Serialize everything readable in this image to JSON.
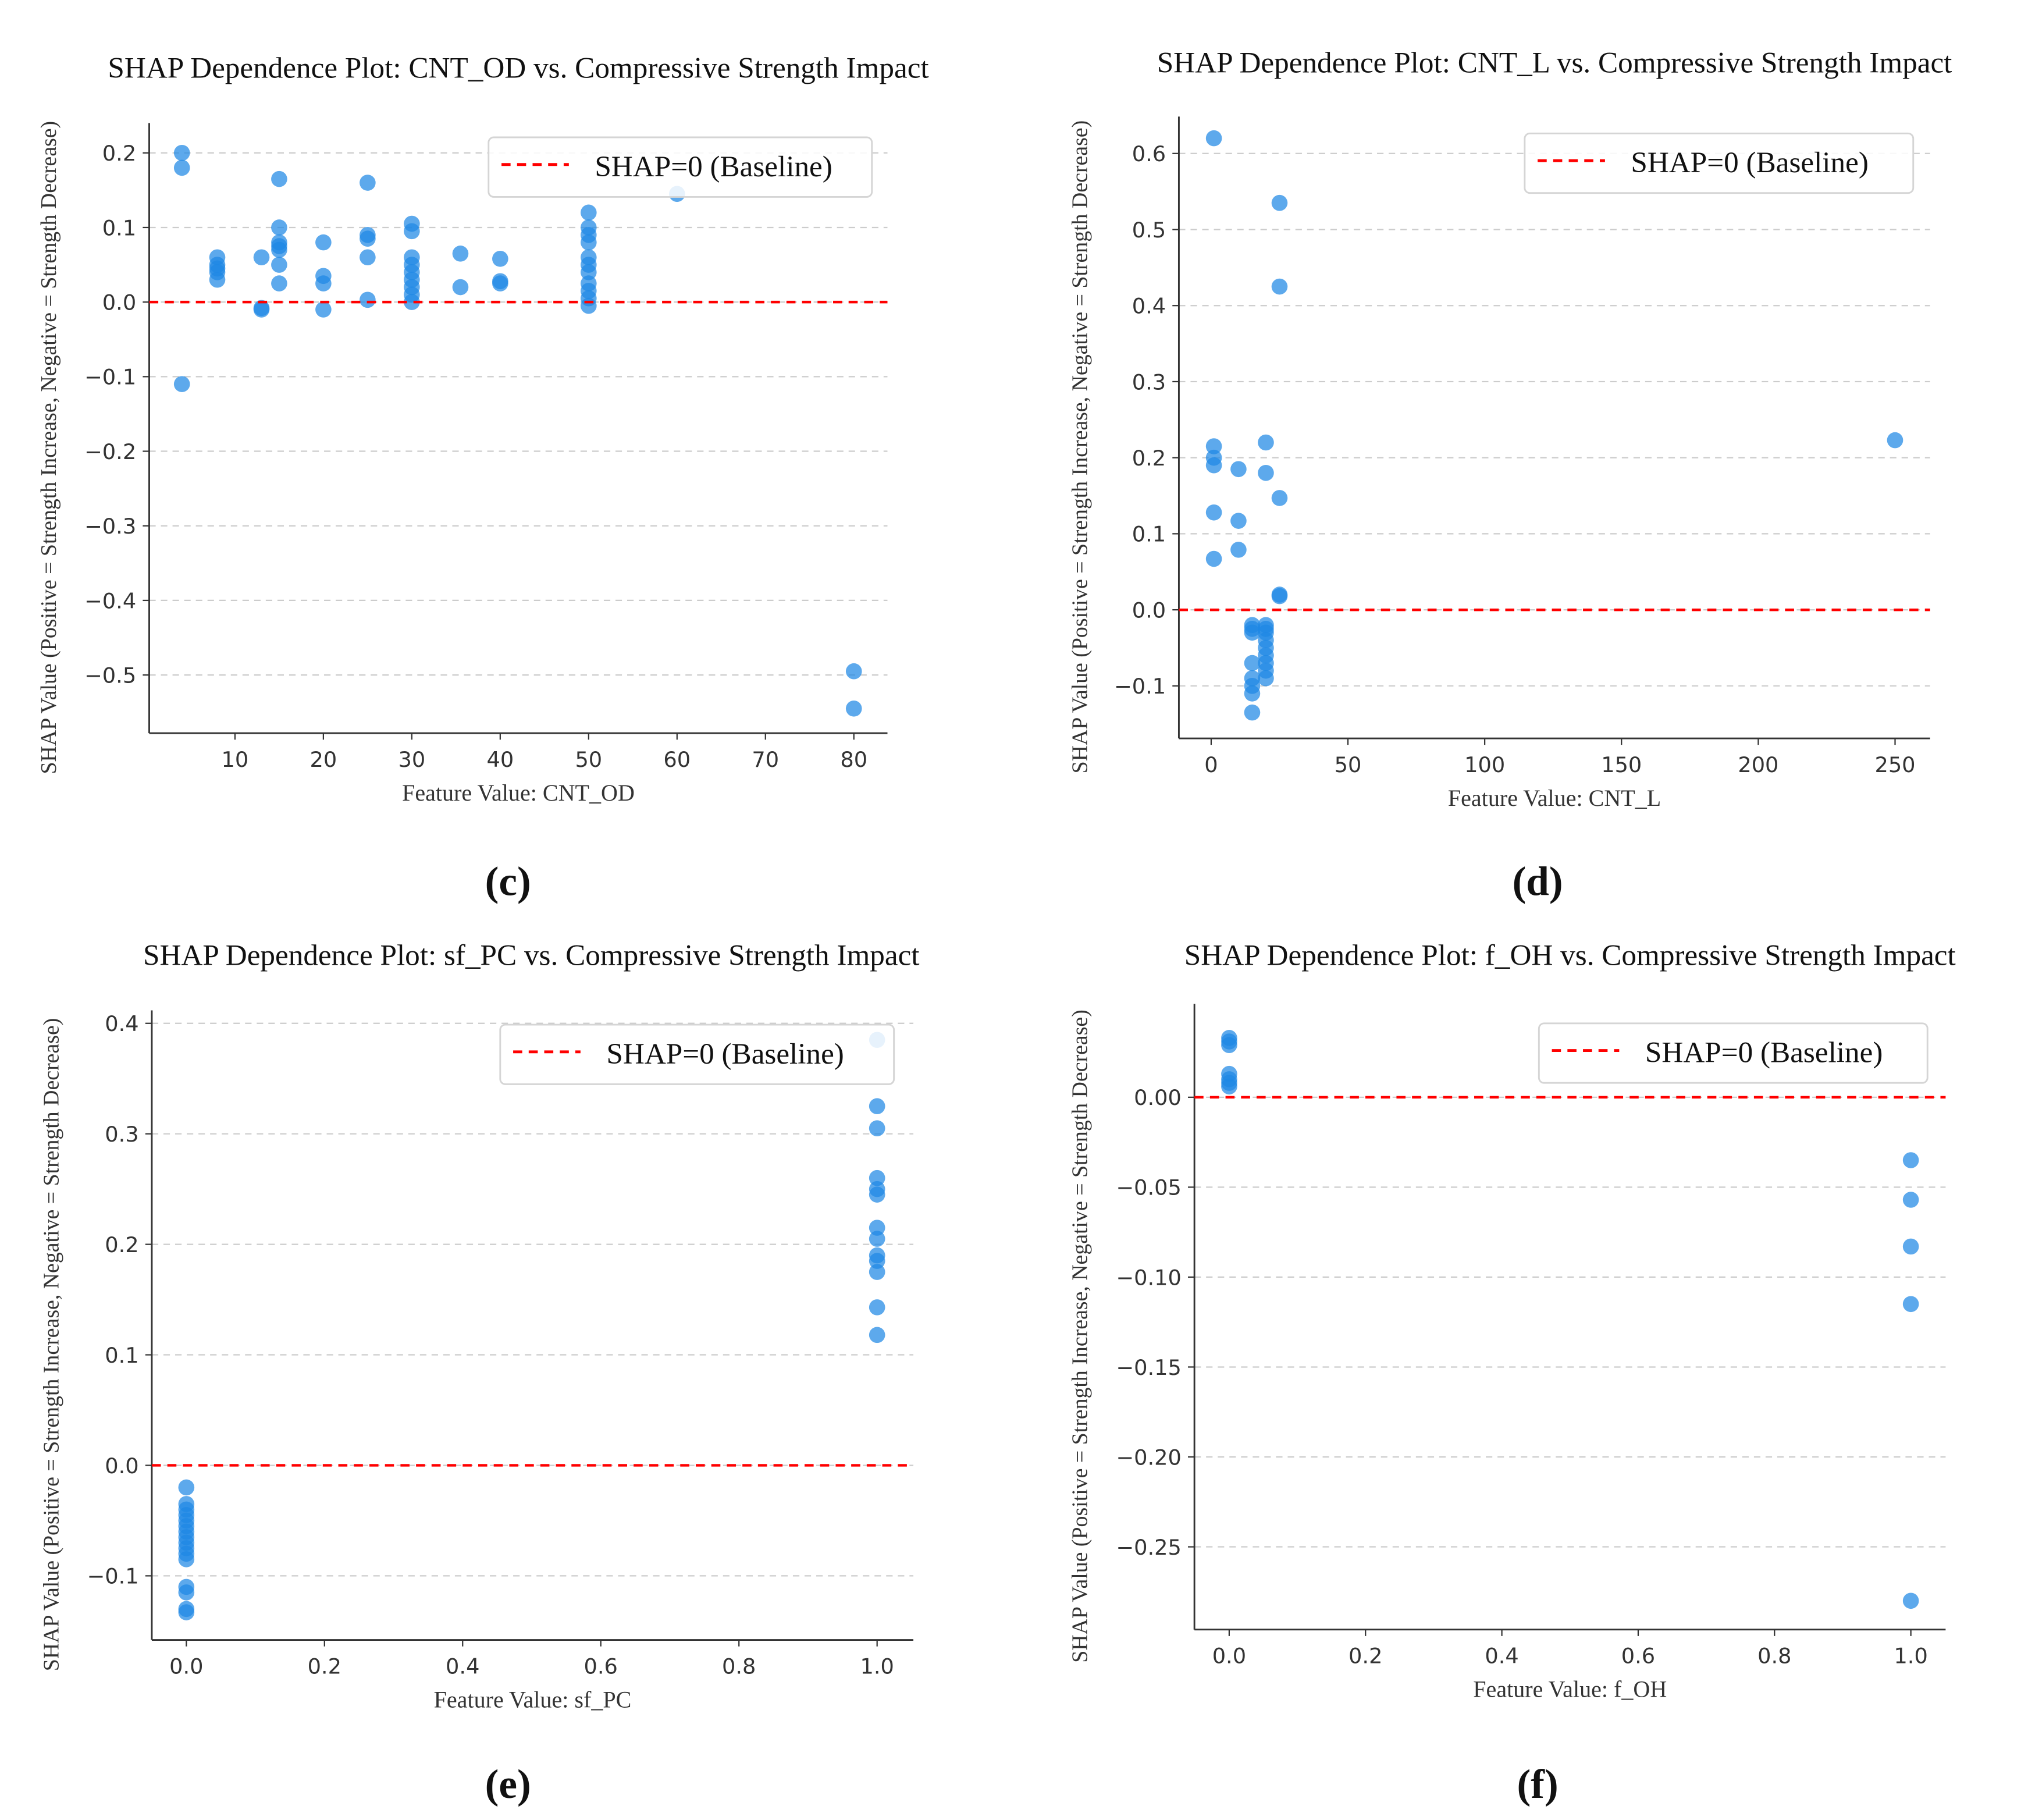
{
  "colors": {
    "point": "#1e88e5",
    "baseline": "#ff0000",
    "grid": "#cccccc",
    "axis": "#333333"
  },
  "chart_data": [
    {
      "type": "scatter",
      "panel_label": "(c)",
      "title": "SHAP Dependence Plot: CNT_OD vs. Compressive Strength Impact",
      "xlabel": "Feature Value: CNT_OD",
      "ylabel": "SHAP Value (Positive = Strength Increase, Negative = Strength Decrease)",
      "legend": "SHAP=0 (Baseline)",
      "legend_position": "top-right",
      "xlim": [
        0.3,
        83.8
      ],
      "ylim": [
        -0.578,
        0.24
      ],
      "xticks": [
        10,
        20,
        30,
        40,
        50,
        60,
        70,
        80
      ],
      "xtick_labels": [
        "10",
        "20",
        "30",
        "40",
        "50",
        "60",
        "70",
        "80"
      ],
      "yticks": [
        0.2,
        0.1,
        0.0,
        -0.1,
        -0.2,
        -0.3,
        -0.4,
        -0.5
      ],
      "ytick_labels": [
        "0.2",
        "0.1",
        "0.0",
        "−0.1",
        "−0.2",
        "−0.3",
        "−0.4",
        "−0.5"
      ],
      "grid": "y-dashed",
      "baseline": 0,
      "points": [
        [
          4,
          0.2
        ],
        [
          4,
          0.18
        ],
        [
          4,
          -0.11
        ],
        [
          8,
          0.06
        ],
        [
          8,
          0.05
        ],
        [
          8,
          0.045
        ],
        [
          8,
          0.04
        ],
        [
          8,
          0.03
        ],
        [
          13,
          0.06
        ],
        [
          13,
          -0.01
        ],
        [
          13,
          -0.008
        ],
        [
          15,
          0.165
        ],
        [
          15,
          0.1
        ],
        [
          15,
          0.08
        ],
        [
          15,
          0.075
        ],
        [
          15,
          0.07
        ],
        [
          15,
          0.05
        ],
        [
          15,
          0.025
        ],
        [
          20,
          0.08
        ],
        [
          20,
          0.035
        ],
        [
          20,
          0.025
        ],
        [
          20,
          -0.01
        ],
        [
          25,
          0.16
        ],
        [
          25,
          0.09
        ],
        [
          25,
          0.085
        ],
        [
          25,
          0.06
        ],
        [
          25,
          0.003
        ],
        [
          30,
          0.105
        ],
        [
          30,
          0.095
        ],
        [
          30,
          0.06
        ],
        [
          30,
          0.05
        ],
        [
          30,
          0.04
        ],
        [
          30,
          0.03
        ],
        [
          30,
          0.02
        ],
        [
          30,
          0.01
        ],
        [
          30,
          0.0
        ],
        [
          35.5,
          0.065
        ],
        [
          35.5,
          0.02
        ],
        [
          40,
          0.058
        ],
        [
          40,
          0.028
        ],
        [
          40,
          0.025
        ],
        [
          50,
          0.12
        ],
        [
          50,
          0.1
        ],
        [
          50,
          0.09
        ],
        [
          50,
          0.08
        ],
        [
          50,
          0.06
        ],
        [
          50,
          0.05
        ],
        [
          50,
          0.04
        ],
        [
          50,
          0.025
        ],
        [
          50,
          0.015
        ],
        [
          50,
          0.005
        ],
        [
          50,
          -0.005
        ],
        [
          60,
          0.145
        ],
        [
          80,
          -0.495
        ],
        [
          80,
          -0.545
        ]
      ]
    },
    {
      "type": "scatter",
      "panel_label": "(d)",
      "title": "SHAP Dependence Plot: CNT_L vs. Compressive Strength Impact",
      "xlabel": "Feature Value: CNT_L",
      "ylabel": "SHAP Value (Positive = Strength Increase, Negative = Strength Decrease)",
      "legend": "SHAP=0 (Baseline)",
      "legend_position": "top-right",
      "xlim": [
        -11.8,
        262.8
      ],
      "ylim": [
        -0.169,
        0.6485
      ],
      "xticks": [
        0,
        50,
        100,
        150,
        200,
        250
      ],
      "xtick_labels": [
        "0",
        "50",
        "100",
        "150",
        "200",
        "250"
      ],
      "yticks": [
        0.6,
        0.5,
        0.4,
        0.3,
        0.2,
        0.1,
        0.0,
        -0.1
      ],
      "ytick_labels": [
        "0.6",
        "0.5",
        "0.4",
        "0.3",
        "0.2",
        "0.1",
        "0.0",
        "−0.1"
      ],
      "grid": "y-dashed",
      "baseline": 0,
      "points": [
        [
          1,
          0.62
        ],
        [
          25,
          0.535
        ],
        [
          25,
          0.425
        ],
        [
          1,
          0.215
        ],
        [
          1,
          0.2
        ],
        [
          1,
          0.19
        ],
        [
          10,
          0.185
        ],
        [
          20,
          0.22
        ],
        [
          20,
          0.18
        ],
        [
          25,
          0.147
        ],
        [
          1,
          0.128
        ],
        [
          10,
          0.117
        ],
        [
          1,
          0.067
        ],
        [
          10,
          0.079
        ],
        [
          25,
          0.02
        ],
        [
          25,
          0.018
        ],
        [
          250,
          0.223
        ],
        [
          15,
          -0.02
        ],
        [
          15,
          -0.025
        ],
        [
          15,
          -0.03
        ],
        [
          15,
          -0.07
        ],
        [
          15,
          -0.09
        ],
        [
          15,
          -0.1
        ],
        [
          15,
          -0.11
        ],
        [
          15,
          -0.135
        ],
        [
          20,
          -0.02
        ],
        [
          20,
          -0.025
        ],
        [
          20,
          -0.03
        ],
        [
          20,
          -0.04
        ],
        [
          20,
          -0.05
        ],
        [
          20,
          -0.06
        ],
        [
          20,
          -0.07
        ],
        [
          20,
          -0.08
        ],
        [
          20,
          -0.09
        ]
      ]
    },
    {
      "type": "scatter",
      "panel_label": "(e)",
      "title": "SHAP Dependence Plot: sf_PC vs. Compressive Strength Impact",
      "xlabel": "Feature Value: sf_PC",
      "ylabel": "SHAP Value (Positive = Strength Increase, Negative = Strength Decrease)",
      "legend": "SHAP=0 (Baseline)",
      "legend_position": "top-right",
      "xlim": [
        -0.05,
        1.0525
      ],
      "ylim": [
        -0.158,
        0.4117
      ],
      "xticks": [
        0,
        0.2,
        0.4,
        0.6,
        0.8,
        1.0
      ],
      "xtick_labels": [
        "0.0",
        "0.2",
        "0.4",
        "0.6",
        "0.8",
        "1.0"
      ],
      "yticks": [
        0.4,
        0.3,
        0.2,
        0.1,
        0.0,
        -0.1
      ],
      "ytick_labels": [
        "0.4",
        "0.3",
        "0.2",
        "0.1",
        "0.0",
        "−0.1"
      ],
      "grid": "y-dashed",
      "baseline": 0,
      "points": [
        [
          0,
          -0.02
        ],
        [
          0,
          -0.035
        ],
        [
          0,
          -0.04
        ],
        [
          0,
          -0.045
        ],
        [
          0,
          -0.05
        ],
        [
          0,
          -0.055
        ],
        [
          0,
          -0.06
        ],
        [
          0,
          -0.065
        ],
        [
          0,
          -0.07
        ],
        [
          0,
          -0.075
        ],
        [
          0,
          -0.08
        ],
        [
          0,
          -0.085
        ],
        [
          0,
          -0.11
        ],
        [
          0,
          -0.115
        ],
        [
          0,
          -0.13
        ],
        [
          0,
          -0.133
        ],
        [
          1,
          0.385
        ],
        [
          1,
          0.325
        ],
        [
          1,
          0.305
        ],
        [
          1,
          0.26
        ],
        [
          1,
          0.25
        ],
        [
          1,
          0.245
        ],
        [
          1,
          0.215
        ],
        [
          1,
          0.205
        ],
        [
          1,
          0.19
        ],
        [
          1,
          0.185
        ],
        [
          1,
          0.175
        ],
        [
          1,
          0.143
        ],
        [
          1,
          0.118
        ]
      ]
    },
    {
      "type": "scatter",
      "panel_label": "(f)",
      "title": "SHAP Dependence Plot: f_OH vs. Compressive Strength Impact",
      "xlabel": "Feature Value: f_OH",
      "ylabel": "SHAP Value (Positive = Strength Increase, Negative = Strength Decrease)",
      "legend": "SHAP=0 (Baseline)",
      "legend_position": "top-right",
      "xlim": [
        -0.051,
        1.051
      ],
      "ylim": [
        -0.296,
        0.0519
      ],
      "xticks": [
        0,
        0.2,
        0.4,
        0.6,
        0.8,
        1.0
      ],
      "xtick_labels": [
        "0.0",
        "0.2",
        "0.4",
        "0.6",
        "0.8",
        "1.0"
      ],
      "yticks": [
        0.0,
        -0.05,
        -0.1,
        -0.15,
        -0.2,
        -0.25
      ],
      "ytick_labels": [
        "0.00",
        "−0.05",
        "−0.10",
        "−0.15",
        "−0.20",
        "−0.25"
      ],
      "grid": "y-dashed",
      "baseline": 0,
      "points": [
        [
          0,
          0.033
        ],
        [
          0,
          0.031
        ],
        [
          0,
          0.029
        ],
        [
          0,
          0.013
        ],
        [
          0,
          0.01
        ],
        [
          0,
          0.008
        ],
        [
          0,
          0.006
        ],
        [
          1,
          -0.035
        ],
        [
          1,
          -0.057
        ],
        [
          1,
          -0.083
        ],
        [
          1,
          -0.115
        ],
        [
          1,
          -0.28
        ]
      ]
    }
  ]
}
